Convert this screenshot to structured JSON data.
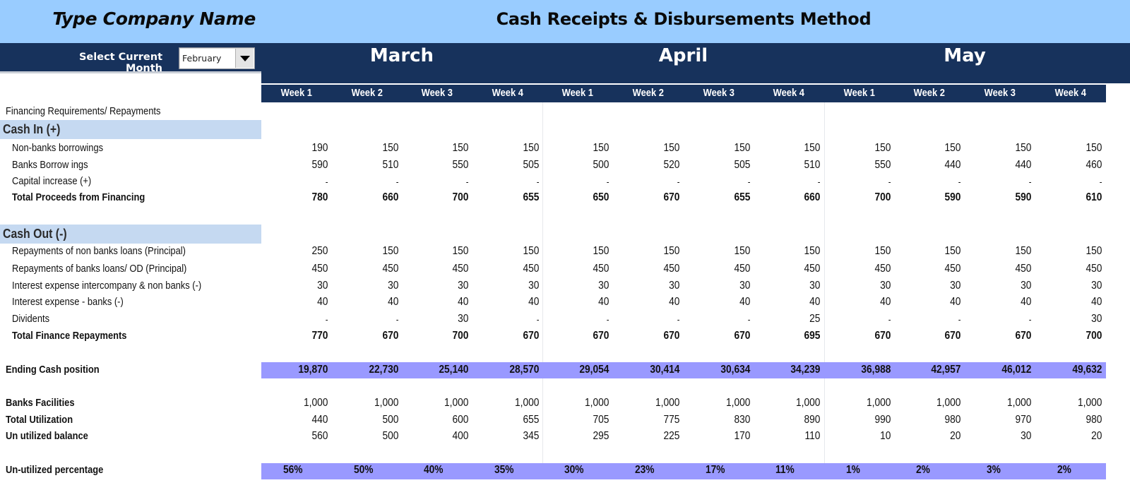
{
  "header": {
    "company_name": "Type Company Name",
    "title": "Cash Receipts & Disbursements Method",
    "select_label": "Select Current Month",
    "month_select": {
      "value": "February",
      "icon": "dropdown-arrow-icon"
    },
    "months": [
      "March",
      "April",
      "May"
    ],
    "weeks": [
      "Week 1",
      "Week 2",
      "Week 3",
      "Week 4",
      "Week 1",
      "Week 2",
      "Week 3",
      "Week 4",
      "Week 1",
      "Week 2",
      "Week 3",
      "Week 4"
    ]
  },
  "colors": {
    "top_band": "#99CCFF",
    "navy": "#17325C",
    "section_band": "#C5D9F1",
    "highlight_band": "#9999FF"
  },
  "table": {
    "section_title": "Financing Requirements/ Repayments",
    "cash_in": {
      "label": "Cash In (+)",
      "rows": [
        {
          "label": "Non-banks borrowings",
          "values": [
            "190",
            "150",
            "150",
            "150",
            "150",
            "150",
            "150",
            "150",
            "150",
            "150",
            "150",
            "150"
          ]
        },
        {
          "label": "Banks Borrow ings",
          "values": [
            "590",
            "510",
            "550",
            "505",
            "500",
            "520",
            "505",
            "510",
            "550",
            "440",
            "440",
            "460"
          ]
        },
        {
          "label": "Capital increase (+)",
          "values": [
            "-",
            "-",
            "-",
            "-",
            "-",
            "-",
            "-",
            "-",
            "-",
            "-",
            "-",
            "-"
          ]
        }
      ],
      "total": {
        "label": "Total Proceeds from Financing",
        "values": [
          "780",
          "660",
          "700",
          "655",
          "650",
          "670",
          "655",
          "660",
          "700",
          "590",
          "590",
          "610"
        ]
      }
    },
    "cash_out": {
      "label": "Cash Out (-)",
      "rows": [
        {
          "label": "Repayments of non banks loans  (Principal)",
          "values": [
            "250",
            "150",
            "150",
            "150",
            "150",
            "150",
            "150",
            "150",
            "150",
            "150",
            "150",
            "150"
          ]
        },
        {
          "label": "Repayments of banks loans/ OD  (Principal)",
          "values": [
            "450",
            "450",
            "450",
            "450",
            "450",
            "450",
            "450",
            "450",
            "450",
            "450",
            "450",
            "450"
          ]
        },
        {
          "label": "Interest expense intercompany & non banks (-)",
          "values": [
            "30",
            "30",
            "30",
            "30",
            "30",
            "30",
            "30",
            "30",
            "30",
            "30",
            "30",
            "30"
          ]
        },
        {
          "label": "Interest expense - banks (-)",
          "values": [
            "40",
            "40",
            "40",
            "40",
            "40",
            "40",
            "40",
            "40",
            "40",
            "40",
            "40",
            "40"
          ]
        },
        {
          "label": "Dividents",
          "values": [
            "-",
            "-",
            "30",
            "-",
            "-",
            "-",
            "-",
            "25",
            "-",
            "-",
            "-",
            "30"
          ]
        }
      ],
      "total": {
        "label": "Total Finance Repayments",
        "values": [
          "770",
          "670",
          "700",
          "670",
          "670",
          "670",
          "670",
          "695",
          "670",
          "670",
          "670",
          "700"
        ]
      }
    },
    "ending_cash": {
      "label": "Ending Cash position",
      "values": [
        "19,870",
        "22,730",
        "25,140",
        "28,570",
        "29,054",
        "30,414",
        "30,634",
        "34,239",
        "36,988",
        "42,957",
        "46,012",
        "49,632"
      ]
    },
    "banks_facilities": {
      "label": "Banks Facilities",
      "values": [
        "1,000",
        "1,000",
        "1,000",
        "1,000",
        "1,000",
        "1,000",
        "1,000",
        "1,000",
        "1,000",
        "1,000",
        "1,000",
        "1,000"
      ]
    },
    "total_utilization": {
      "label": "Total Utilization",
      "values": [
        "440",
        "500",
        "600",
        "655",
        "705",
        "775",
        "830",
        "890",
        "990",
        "980",
        "970",
        "980"
      ]
    },
    "unutilized_balance": {
      "label": "Un utilized balance",
      "values": [
        "560",
        "500",
        "400",
        "345",
        "295",
        "225",
        "170",
        "110",
        "10",
        "20",
        "30",
        "20"
      ]
    },
    "unutilized_pct": {
      "label": "Un-utilized percentage",
      "values": [
        "56%",
        "50%",
        "40%",
        "35%",
        "30%",
        "23%",
        "17%",
        "11%",
        "1%",
        "2%",
        "3%",
        "2%"
      ]
    }
  }
}
